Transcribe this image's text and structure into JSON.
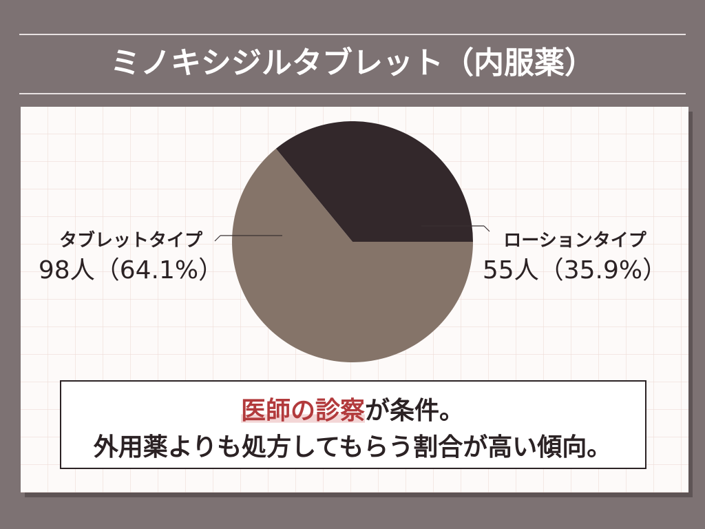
{
  "chart_data": {
    "type": "pie",
    "title": "ミノキシジルタブレット（内服薬）",
    "categories": [
      "タブレットタイプ",
      "ローションタイプ"
    ],
    "values": [
      98,
      55
    ],
    "value_labels": [
      "98人（64.1%）",
      "55人（35.9%）"
    ],
    "colors": [
      "#857469",
      "#33282b"
    ],
    "annotation": [
      "医師の診察",
      "が条件。",
      "外用薬よりも処方してもらう割合が高い傾向。"
    ],
    "highlight_color": "#b23a3c"
  }
}
